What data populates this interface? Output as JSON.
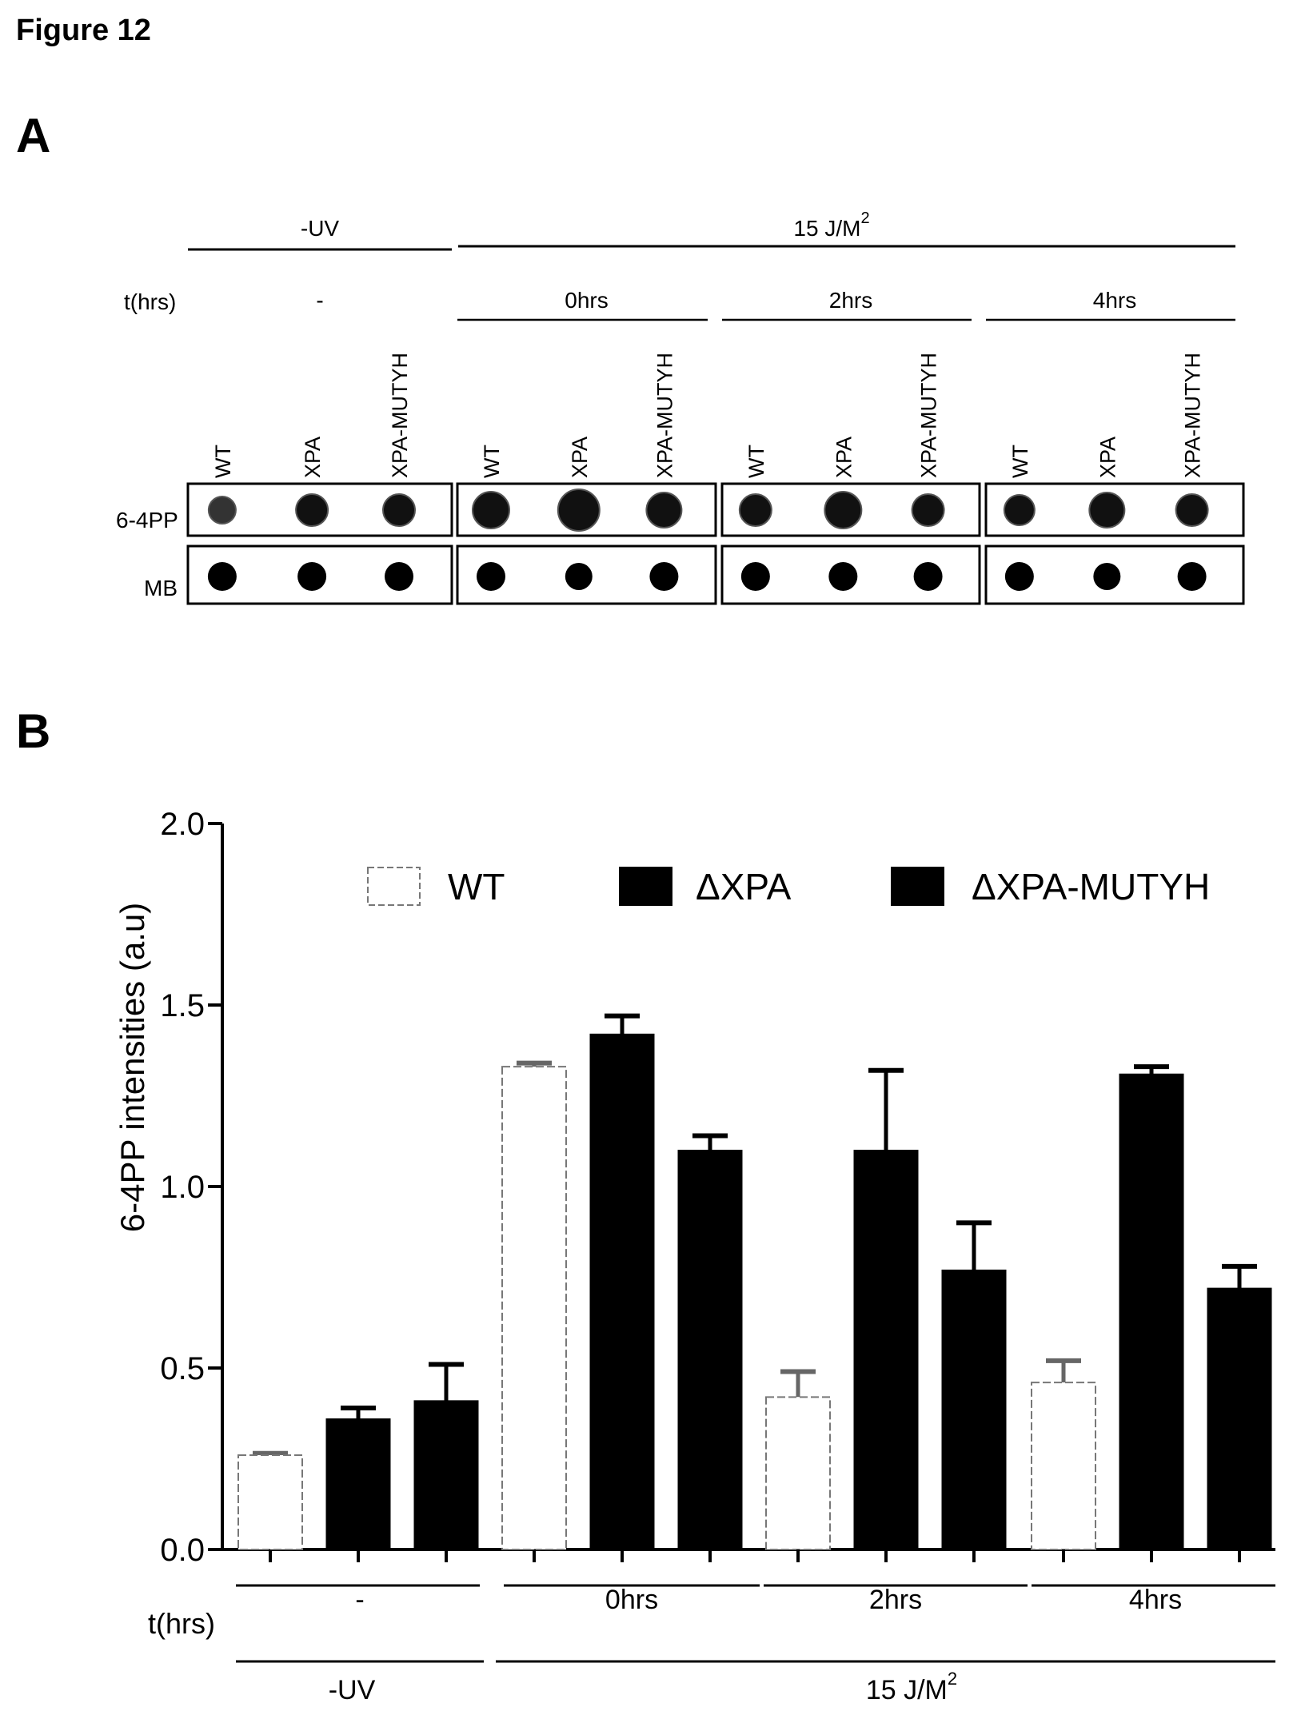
{
  "figure": {
    "title": "Figure 12",
    "panel_a_label": "A",
    "panel_b_label": "B"
  },
  "blot": {
    "treatment_uv_neg": "-UV",
    "treatment_dose": "15 J/M",
    "treatment_dose_sup": "2",
    "time_header": "t(hrs)",
    "groups": [
      {
        "time": "-",
        "lanes": [
          "WT",
          "XPA",
          "XPA-MUTYH"
        ]
      },
      {
        "time": "0hrs",
        "lanes": [
          "WT",
          "XPA",
          "XPA-MUTYH"
        ]
      },
      {
        "time": "2hrs",
        "lanes": [
          "WT",
          "XPA",
          "XPA-MUTYH"
        ]
      },
      {
        "time": "4hrs",
        "lanes": [
          "WT",
          "XPA",
          "XPA-MUTYH"
        ]
      }
    ],
    "rows": [
      "6-4PP",
      "MB"
    ]
  },
  "chart_data": {
    "type": "bar",
    "title": "",
    "xlabel": "",
    "ylabel": "6-4PP intensities (a.u)",
    "ylim": [
      0,
      2.0
    ],
    "yticks": [
      0.0,
      0.5,
      1.0,
      1.5,
      2.0
    ],
    "ytick_labels": [
      "0.0",
      "0.5",
      "1.0",
      "1.5",
      "2.0"
    ],
    "categories": [
      "-",
      "0hrs",
      "2hrs",
      "4hrs"
    ],
    "series": [
      {
        "name": "WT",
        "color": "#ffffff",
        "values": [
          0.26,
          1.33,
          0.42,
          0.46
        ],
        "errors": [
          0.005,
          0.01,
          0.07,
          0.06
        ]
      },
      {
        "name": "ΔXPA",
        "color": "#000000",
        "values": [
          0.36,
          1.42,
          1.1,
          1.31
        ],
        "errors": [
          0.03,
          0.05,
          0.22,
          0.02
        ]
      },
      {
        "name": "ΔXPA-MUTYH",
        "color": "#000000",
        "values": [
          0.41,
          1.1,
          0.77,
          0.72
        ],
        "errors": [
          0.1,
          0.04,
          0.13,
          0.06
        ]
      }
    ],
    "time_header": "t(hrs)",
    "treatment_uv_neg": "-UV",
    "treatment_dose": "15 J/M",
    "treatment_dose_sup": "2"
  }
}
